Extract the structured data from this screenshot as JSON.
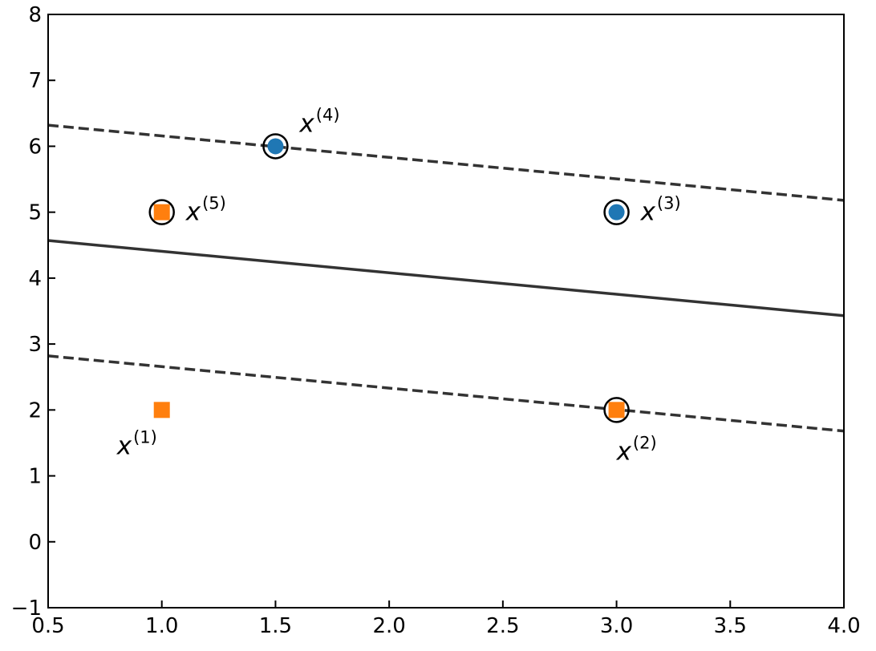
{
  "chart_data": {
    "type": "scatter",
    "title": "",
    "xlabel": "",
    "ylabel": "",
    "xlim": [
      0.5,
      4.0
    ],
    "ylim": [
      -1,
      8
    ],
    "x_ticks": [
      "0.5",
      "1.0",
      "1.5",
      "2.0",
      "2.5",
      "3.0",
      "3.5",
      "4.0"
    ],
    "y_ticks": [
      "−1",
      "0",
      "1",
      "2",
      "3",
      "4",
      "5",
      "6",
      "7",
      "8"
    ],
    "grid": false,
    "colors": {
      "class_circle": "#1f77b4",
      "class_square": "#ff7f0e",
      "lines": "#333333"
    },
    "points": [
      {
        "label": "x",
        "sup": "(1)",
        "x": 1.0,
        "y": 2.0,
        "marker": "square",
        "color": "#ff7f0e",
        "support_vector": false,
        "label_pos": "below-left"
      },
      {
        "label": "x",
        "sup": "(2)",
        "x": 3.0,
        "y": 2.0,
        "marker": "square",
        "color": "#ff7f0e",
        "support_vector": true,
        "label_pos": "below"
      },
      {
        "label": "x",
        "sup": "(3)",
        "x": 3.0,
        "y": 5.0,
        "marker": "circle",
        "color": "#1f77b4",
        "support_vector": true,
        "label_pos": "right"
      },
      {
        "label": "x",
        "sup": "(4)",
        "x": 1.5,
        "y": 6.0,
        "marker": "circle",
        "color": "#1f77b4",
        "support_vector": true,
        "label_pos": "above-right"
      },
      {
        "label": "x",
        "sup": "(5)",
        "x": 1.0,
        "y": 5.0,
        "marker": "square",
        "color": "#ff7f0e",
        "support_vector": true,
        "label_pos": "right"
      }
    ],
    "lines": [
      {
        "name": "",
        "style": "solid",
        "x": [
          0.5,
          4.0
        ],
        "y": [
          4.57,
          3.43
        ]
      },
      {
        "name": "",
        "style": "dashed",
        "x": [
          0.5,
          4.0
        ],
        "y": [
          6.32,
          5.18
        ]
      },
      {
        "name": "",
        "style": "dashed",
        "x": [
          0.5,
          4.0
        ],
        "y": [
          2.82,
          1.68
        ]
      }
    ]
  }
}
